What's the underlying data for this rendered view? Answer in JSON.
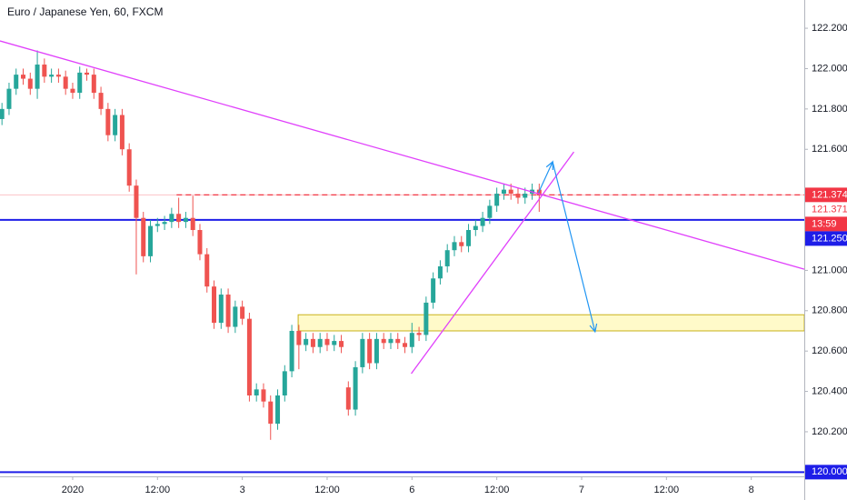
{
  "chart_data": {
    "type": "candlestick",
    "title": "Euro / Japanese Yen, 60, FXCM",
    "x": [
      -10,
      -9,
      -8,
      -7,
      -6,
      -5,
      -4,
      -3,
      -2,
      -1,
      0,
      1,
      2,
      3,
      4,
      5,
      6,
      7,
      8,
      9,
      10,
      11,
      12,
      13,
      14,
      15,
      16,
      17,
      18,
      19,
      20,
      21,
      22,
      23,
      24,
      25,
      26,
      27,
      28,
      29,
      30,
      31,
      32,
      33,
      34,
      35,
      36,
      37,
      38,
      39,
      40,
      41,
      42,
      43,
      44,
      45,
      46,
      47,
      48,
      49,
      50,
      51,
      52,
      53,
      54,
      55,
      56,
      57,
      58,
      59,
      60,
      61,
      62,
      63,
      64,
      65,
      66
    ],
    "open": [
      121.75,
      121.8,
      121.9,
      121.97,
      121.95,
      121.9,
      122.02,
      121.96,
      121.97,
      121.96,
      121.9,
      121.88,
      121.98,
      121.97,
      121.88,
      121.8,
      121.67,
      121.77,
      121.6,
      121.42,
      121.26,
      121.07,
      121.22,
      121.23,
      121.24,
      121.28,
      121.24,
      121.26,
      121.2,
      121.08,
      120.92,
      120.74,
      120.88,
      120.72,
      120.82,
      120.76,
      120.38,
      120.41,
      120.35,
      120.24,
      120.38,
      120.5,
      120.7,
      120.63,
      120.66,
      120.62,
      120.66,
      120.63,
      120.65,
      120.42,
      120.31,
      120.52,
      120.66,
      120.54,
      120.66,
      120.64,
      120.66,
      120.64,
      120.62,
      120.69,
      120.68,
      120.84,
      120.96,
      121.02,
      121.1,
      121.14,
      121.12,
      121.2,
      121.22,
      121.26,
      121.32,
      121.38,
      121.4,
      121.38,
      121.36,
      121.38,
      121.4
    ],
    "high": [
      121.83,
      121.93,
      122.0,
      122.0,
      121.98,
      122.09,
      122.05,
      122.0,
      122.0,
      121.99,
      121.93,
      122.01,
      122.0,
      122.0,
      121.91,
      121.83,
      121.8,
      121.8,
      121.63,
      121.45,
      121.29,
      121.25,
      121.26,
      121.27,
      121.31,
      121.36,
      121.29,
      121.37,
      121.23,
      121.11,
      120.95,
      120.91,
      120.91,
      120.85,
      120.85,
      120.79,
      120.44,
      120.44,
      120.38,
      120.41,
      120.53,
      120.73,
      120.73,
      120.69,
      120.69,
      120.69,
      120.69,
      120.68,
      120.68,
      120.45,
      120.55,
      120.69,
      120.69,
      120.69,
      120.69,
      120.69,
      120.69,
      120.67,
      120.74,
      120.72,
      120.87,
      120.99,
      121.05,
      121.13,
      121.17,
      121.17,
      121.23,
      121.25,
      121.29,
      121.35,
      121.41,
      121.43,
      121.43,
      121.41,
      121.41,
      121.43,
      121.43
    ],
    "low": [
      121.72,
      121.77,
      121.87,
      121.92,
      121.87,
      121.85,
      121.93,
      121.93,
      121.93,
      121.87,
      121.85,
      121.85,
      121.94,
      121.85,
      121.77,
      121.64,
      121.64,
      121.57,
      121.39,
      120.98,
      121.04,
      121.04,
      121.19,
      121.2,
      121.21,
      121.21,
      121.21,
      121.17,
      121.05,
      120.89,
      120.71,
      120.71,
      120.69,
      120.69,
      120.73,
      120.35,
      120.35,
      120.32,
      120.16,
      120.21,
      120.35,
      120.47,
      120.51,
      120.6,
      120.59,
      120.59,
      120.6,
      120.6,
      120.59,
      120.28,
      120.28,
      120.49,
      120.51,
      120.51,
      120.61,
      120.61,
      120.61,
      120.59,
      120.59,
      120.65,
      120.65,
      120.81,
      120.93,
      120.99,
      121.07,
      121.09,
      121.09,
      121.17,
      121.19,
      121.23,
      121.29,
      121.35,
      121.35,
      121.33,
      121.33,
      121.35,
      121.29
    ],
    "close": [
      121.8,
      121.9,
      121.97,
      121.95,
      121.9,
      122.02,
      121.96,
      121.97,
      121.96,
      121.9,
      121.88,
      121.98,
      121.97,
      121.88,
      121.8,
      121.67,
      121.77,
      121.6,
      121.42,
      121.26,
      121.07,
      121.22,
      121.23,
      121.24,
      121.28,
      121.24,
      121.26,
      121.2,
      121.08,
      120.92,
      120.74,
      120.88,
      120.72,
      120.82,
      120.76,
      120.38,
      120.41,
      120.35,
      120.24,
      120.38,
      120.5,
      120.7,
      120.63,
      120.66,
      120.62,
      120.66,
      120.63,
      120.65,
      120.62,
      120.31,
      120.52,
      120.66,
      120.54,
      120.66,
      120.64,
      120.66,
      120.64,
      120.62,
      120.69,
      120.68,
      120.84,
      120.96,
      121.02,
      121.1,
      121.14,
      121.12,
      121.2,
      121.22,
      121.26,
      121.32,
      121.38,
      121.4,
      121.38,
      121.36,
      121.38,
      121.4,
      121.371
    ],
    "up_color": "#26a69a",
    "down_color": "#ef5350",
    "xlim": [
      -10.28,
      103.5
    ],
    "ylim": [
      119.979,
      122.34
    ],
    "xticks": [
      {
        "value": 0,
        "label": "2020"
      },
      {
        "value": 12,
        "label": "12:00"
      },
      {
        "value": 24,
        "label": "3"
      },
      {
        "value": 36,
        "label": "12:00"
      },
      {
        "value": 48,
        "label": "6"
      },
      {
        "value": 60,
        "label": "12:00"
      },
      {
        "value": 72,
        "label": "7"
      },
      {
        "value": 84,
        "label": "12:00"
      },
      {
        "value": 96,
        "label": "8"
      }
    ],
    "yticks": [
      {
        "value": 122.2,
        "label": "122.200"
      },
      {
        "value": 122.0,
        "label": "122.000"
      },
      {
        "value": 121.8,
        "label": "121.800"
      },
      {
        "value": 121.6,
        "label": "121.600"
      },
      {
        "value": 121.0,
        "label": "121.000"
      },
      {
        "value": 120.8,
        "label": "120.800"
      },
      {
        "value": 120.6,
        "label": "120.600"
      },
      {
        "value": 120.4,
        "label": "120.400"
      },
      {
        "value": 120.2,
        "label": "120.200"
      }
    ],
    "grid": false,
    "price_labels": [
      {
        "value": 121.374,
        "label": "121.374",
        "color": "#f23645"
      },
      {
        "value": 121.371,
        "label": "121.371",
        "color": "#ffffff"
      },
      {
        "label": "13:59",
        "color": "#f23645"
      },
      {
        "value": 121.25,
        "label": "121.250",
        "color": "#1e1ee8"
      },
      {
        "value": 120.0,
        "label": "120.000",
        "color": "#1e1ee8"
      }
    ],
    "horizontal_lines": [
      {
        "value": 121.25,
        "color": "#1e1ee8"
      },
      {
        "value": 120.0,
        "color": "#1e1ee8"
      }
    ],
    "horizontal_rays": [
      {
        "x": 14.7,
        "y": 121.374,
        "color": "#f23645"
      }
    ],
    "trend_lines": [
      {
        "x": [
          -10.28,
          103.5
        ],
        "y": [
          122.137,
          121.006
        ],
        "color": "#e040fb"
      },
      {
        "x": [
          47.9,
          70.9
        ],
        "y": [
          120.488,
          121.587
        ],
        "color": "#e040fb"
      }
    ],
    "zone": {
      "x": 31.9,
      "y": [
        120.7,
        120.78
      ],
      "color": "#fff59d"
    },
    "arrow": {
      "x": [
        65.9,
        67.9,
        73.9
      ],
      "y": [
        121.385,
        121.538,
        120.696
      ],
      "color": "#2196f3"
    }
  }
}
